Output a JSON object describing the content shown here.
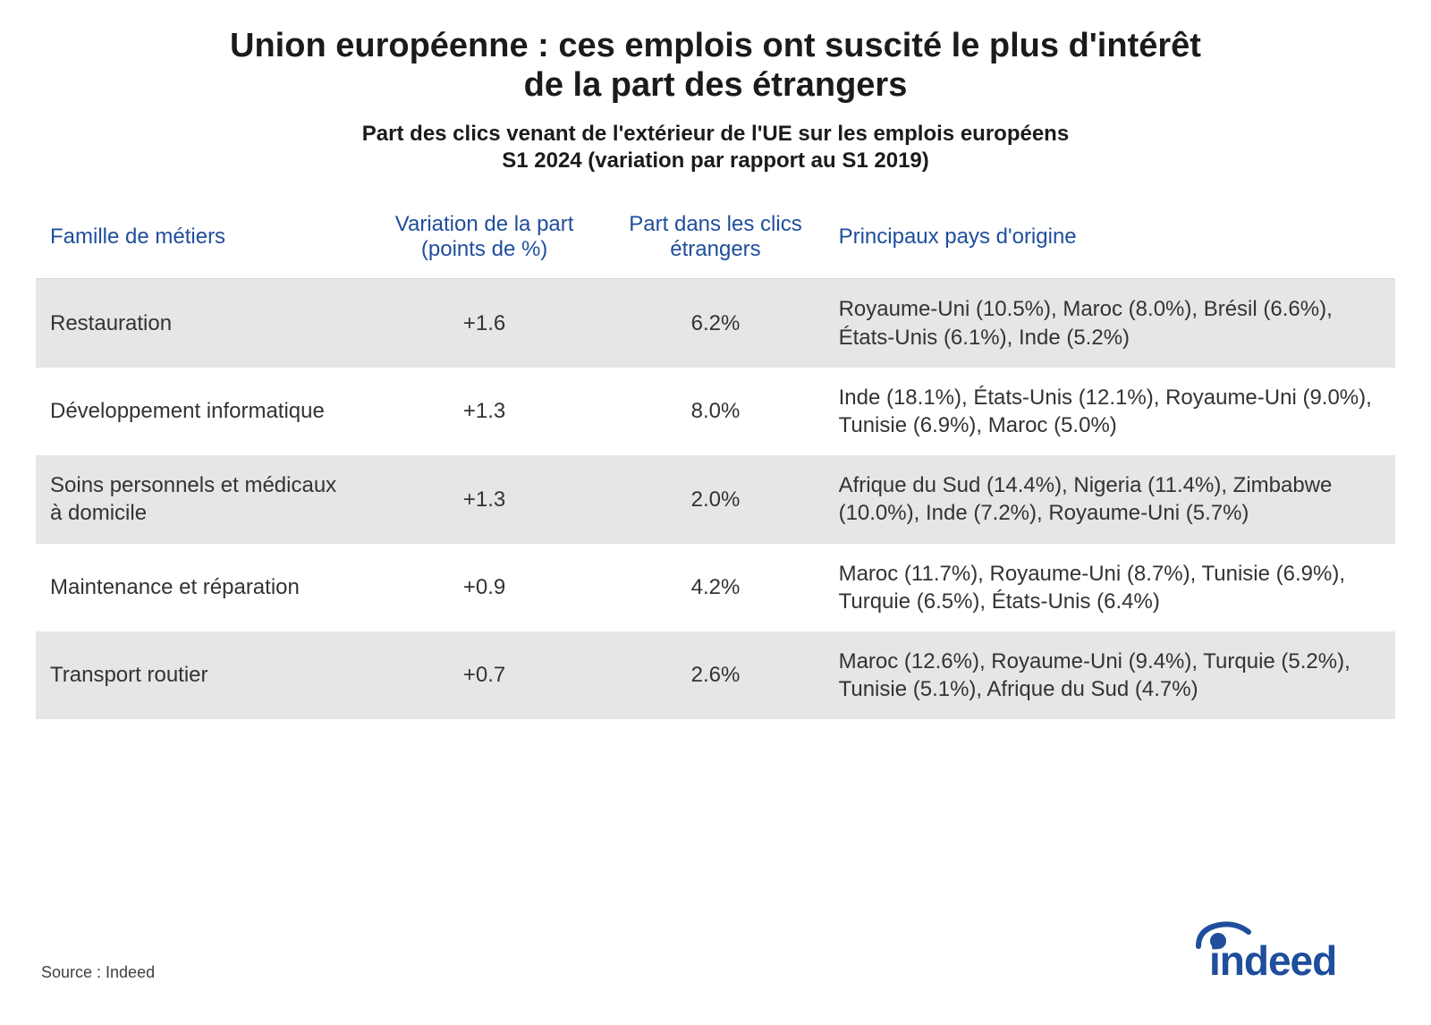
{
  "title_line1": "Union européenne : ces emplois ont suscité le plus d'intérêt",
  "title_line2": "de la part des étrangers",
  "subtitle_line1": "Part des clics venant de l'extérieur de l'UE sur les emplois européens",
  "subtitle_line2": "S1 2024 (variation par rapport au S1 2019)",
  "table": {
    "type": "table",
    "header_color": "#1f4e9c",
    "header_fontsize": 24,
    "body_fontsize": 24,
    "body_color": "#333333",
    "row_shade_color": "#e6e6e6",
    "columns": [
      {
        "label": "Famille de métiers",
        "width": "24%",
        "align": "left"
      },
      {
        "label": "Variation de la part (points de %)",
        "width": "18%",
        "align": "center"
      },
      {
        "label": "Part dans les clics étrangers",
        "width": "16%",
        "align": "center"
      },
      {
        "label": "Principaux pays d'origine",
        "width": "42%",
        "align": "left"
      }
    ],
    "rows": [
      {
        "shaded": true,
        "cells": [
          "Restauration",
          "+1.6",
          "6.2%",
          "Royaume-Uni (10.5%), Maroc (8.0%), Brésil (6.6%), États-Unis (6.1%), Inde (5.2%)"
        ]
      },
      {
        "shaded": false,
        "cells": [
          "Développement informatique",
          "+1.3",
          "8.0%",
          "Inde (18.1%), États-Unis (12.1%), Royaume-Uni (9.0%), Tunisie (6.9%), Maroc (5.0%)"
        ]
      },
      {
        "shaded": true,
        "cells": [
          "Soins personnels et médicaux à domicile",
          "+1.3",
          "2.0%",
          "Afrique du Sud (14.4%), Nigeria (11.4%), Zimbabwe (10.0%), Inde (7.2%), Royaume-Uni (5.7%)"
        ]
      },
      {
        "shaded": false,
        "cells": [
          "Maintenance et réparation",
          "+0.9",
          "4.2%",
          "Maroc (11.7%), Royaume-Uni (8.7%), Tunisie (6.9%), Turquie (6.5%), États-Unis (6.4%)"
        ]
      },
      {
        "shaded": true,
        "cells": [
          "Transport routier",
          "+0.7",
          "2.6%",
          "Maroc (12.6%), Royaume-Uni (9.4%), Turquie (5.2%), Tunisie (5.1%), Afrique du Sud (4.7%)"
        ]
      }
    ]
  },
  "title_fontsize": 38,
  "title_color": "#1b1b1b",
  "subtitle_fontsize": 24,
  "subtitle_color": "#1b1b1b",
  "source_label": "Source : Indeed",
  "source_fontsize": 18,
  "logo": {
    "text": "indeed",
    "color": "#1f4e9c",
    "fontsize": 48
  },
  "background_color": "#ffffff"
}
